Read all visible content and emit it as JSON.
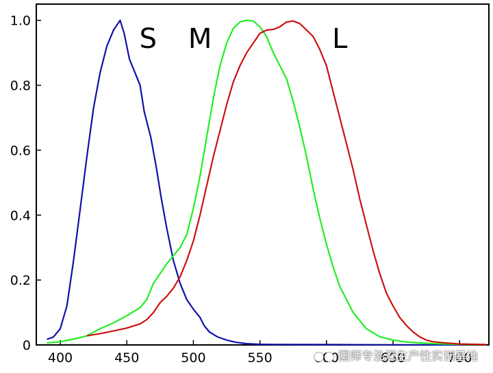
{
  "chart_data": {
    "type": "line",
    "title": "",
    "xlabel": "",
    "ylabel": "",
    "xlim": [
      382,
      722
    ],
    "ylim": [
      0,
      1.05
    ],
    "x_ticks": [
      400,
      450,
      500,
      550,
      600,
      650,
      700
    ],
    "y_ticks": [
      0,
      0.2,
      0.4,
      0.6,
      0.8,
      1.0
    ],
    "x_tick_labels": [
      "400",
      "450",
      "500",
      "550",
      "600",
      "650",
      "700"
    ],
    "y_tick_labels": [
      "0",
      "0.2",
      "0.4",
      "0.6",
      "0.8",
      "1.0"
    ],
    "grid": false,
    "series": [
      {
        "name": "S",
        "color": "#1010a8",
        "points": [
          [
            390,
            0.017
          ],
          [
            395,
            0.025
          ],
          [
            400,
            0.05
          ],
          [
            405,
            0.12
          ],
          [
            410,
            0.26
          ],
          [
            415,
            0.42
          ],
          [
            420,
            0.58
          ],
          [
            425,
            0.73
          ],
          [
            430,
            0.84
          ],
          [
            435,
            0.92
          ],
          [
            440,
            0.97
          ],
          [
            445,
            1.0
          ],
          [
            448,
            0.96
          ],
          [
            452,
            0.88
          ],
          [
            456,
            0.84
          ],
          [
            460,
            0.8
          ],
          [
            463,
            0.72
          ],
          [
            468,
            0.64
          ],
          [
            472,
            0.55
          ],
          [
            476,
            0.45
          ],
          [
            480,
            0.36
          ],
          [
            485,
            0.26
          ],
          [
            490,
            0.19
          ],
          [
            495,
            0.14
          ],
          [
            500,
            0.11
          ],
          [
            505,
            0.085
          ],
          [
            508,
            0.06
          ],
          [
            512,
            0.04
          ],
          [
            518,
            0.025
          ],
          [
            525,
            0.015
          ],
          [
            532,
            0.008
          ],
          [
            540,
            0.004
          ],
          [
            550,
            0.002
          ],
          [
            560,
            0.0015
          ],
          [
            600,
            0.001
          ],
          [
            650,
            0.0005
          ],
          [
            700,
            0.0002
          ]
        ]
      },
      {
        "name": "M",
        "color": "#22ee22",
        "points": [
          [
            390,
            0.006
          ],
          [
            400,
            0.01
          ],
          [
            410,
            0.018
          ],
          [
            420,
            0.028
          ],
          [
            430,
            0.05
          ],
          [
            440,
            0.068
          ],
          [
            450,
            0.09
          ],
          [
            460,
            0.115
          ],
          [
            465,
            0.14
          ],
          [
            470,
            0.19
          ],
          [
            475,
            0.22
          ],
          [
            480,
            0.25
          ],
          [
            490,
            0.3
          ],
          [
            495,
            0.34
          ],
          [
            500,
            0.42
          ],
          [
            505,
            0.52
          ],
          [
            510,
            0.64
          ],
          [
            515,
            0.76
          ],
          [
            520,
            0.86
          ],
          [
            525,
            0.93
          ],
          [
            530,
            0.975
          ],
          [
            535,
            0.995
          ],
          [
            540,
            1.0
          ],
          [
            545,
            0.998
          ],
          [
            550,
            0.98
          ],
          [
            555,
            0.95
          ],
          [
            560,
            0.9
          ],
          [
            565,
            0.86
          ],
          [
            570,
            0.82
          ],
          [
            575,
            0.75
          ],
          [
            580,
            0.67
          ],
          [
            585,
            0.58
          ],
          [
            590,
            0.48
          ],
          [
            595,
            0.39
          ],
          [
            600,
            0.31
          ],
          [
            605,
            0.24
          ],
          [
            610,
            0.18
          ],
          [
            615,
            0.14
          ],
          [
            620,
            0.1
          ],
          [
            630,
            0.05
          ],
          [
            640,
            0.025
          ],
          [
            650,
            0.015
          ],
          [
            660,
            0.009
          ],
          [
            680,
            0.004
          ],
          [
            700,
            0.002
          ],
          [
            720,
            0.001
          ]
        ]
      },
      {
        "name": "L",
        "color": "#cc1010",
        "points": [
          [
            420,
            0.028
          ],
          [
            430,
            0.035
          ],
          [
            440,
            0.043
          ],
          [
            450,
            0.052
          ],
          [
            460,
            0.065
          ],
          [
            465,
            0.078
          ],
          [
            470,
            0.1
          ],
          [
            475,
            0.13
          ],
          [
            480,
            0.15
          ],
          [
            485,
            0.175
          ],
          [
            490,
            0.21
          ],
          [
            495,
            0.26
          ],
          [
            500,
            0.32
          ],
          [
            505,
            0.4
          ],
          [
            510,
            0.49
          ],
          [
            515,
            0.58
          ],
          [
            520,
            0.66
          ],
          [
            525,
            0.74
          ],
          [
            530,
            0.81
          ],
          [
            535,
            0.86
          ],
          [
            540,
            0.9
          ],
          [
            545,
            0.93
          ],
          [
            550,
            0.96
          ],
          [
            555,
            0.97
          ],
          [
            560,
            0.972
          ],
          [
            565,
            0.98
          ],
          [
            570,
            0.995
          ],
          [
            575,
            0.998
          ],
          [
            580,
            0.99
          ],
          [
            585,
            0.97
          ],
          [
            590,
            0.95
          ],
          [
            595,
            0.91
          ],
          [
            600,
            0.86
          ],
          [
            605,
            0.78
          ],
          [
            610,
            0.7
          ],
          [
            615,
            0.62
          ],
          [
            620,
            0.54
          ],
          [
            625,
            0.45
          ],
          [
            630,
            0.37
          ],
          [
            635,
            0.29
          ],
          [
            640,
            0.22
          ],
          [
            645,
            0.16
          ],
          [
            650,
            0.12
          ],
          [
            655,
            0.085
          ],
          [
            660,
            0.06
          ],
          [
            665,
            0.04
          ],
          [
            670,
            0.025
          ],
          [
            675,
            0.015
          ],
          [
            680,
            0.01
          ],
          [
            690,
            0.006
          ],
          [
            700,
            0.003
          ],
          [
            720,
            0.001
          ]
        ]
      }
    ],
    "annotations": [
      {
        "text": "S",
        "x": 466,
        "y": 0.915
      },
      {
        "text": "M",
        "x": 505,
        "y": 0.915
      },
      {
        "text": "L",
        "x": 610,
        "y": 0.915
      }
    ]
  },
  "watermark": {
    "icon": "wechat-icon",
    "text": "国师专泓深生产性实训基地"
  }
}
